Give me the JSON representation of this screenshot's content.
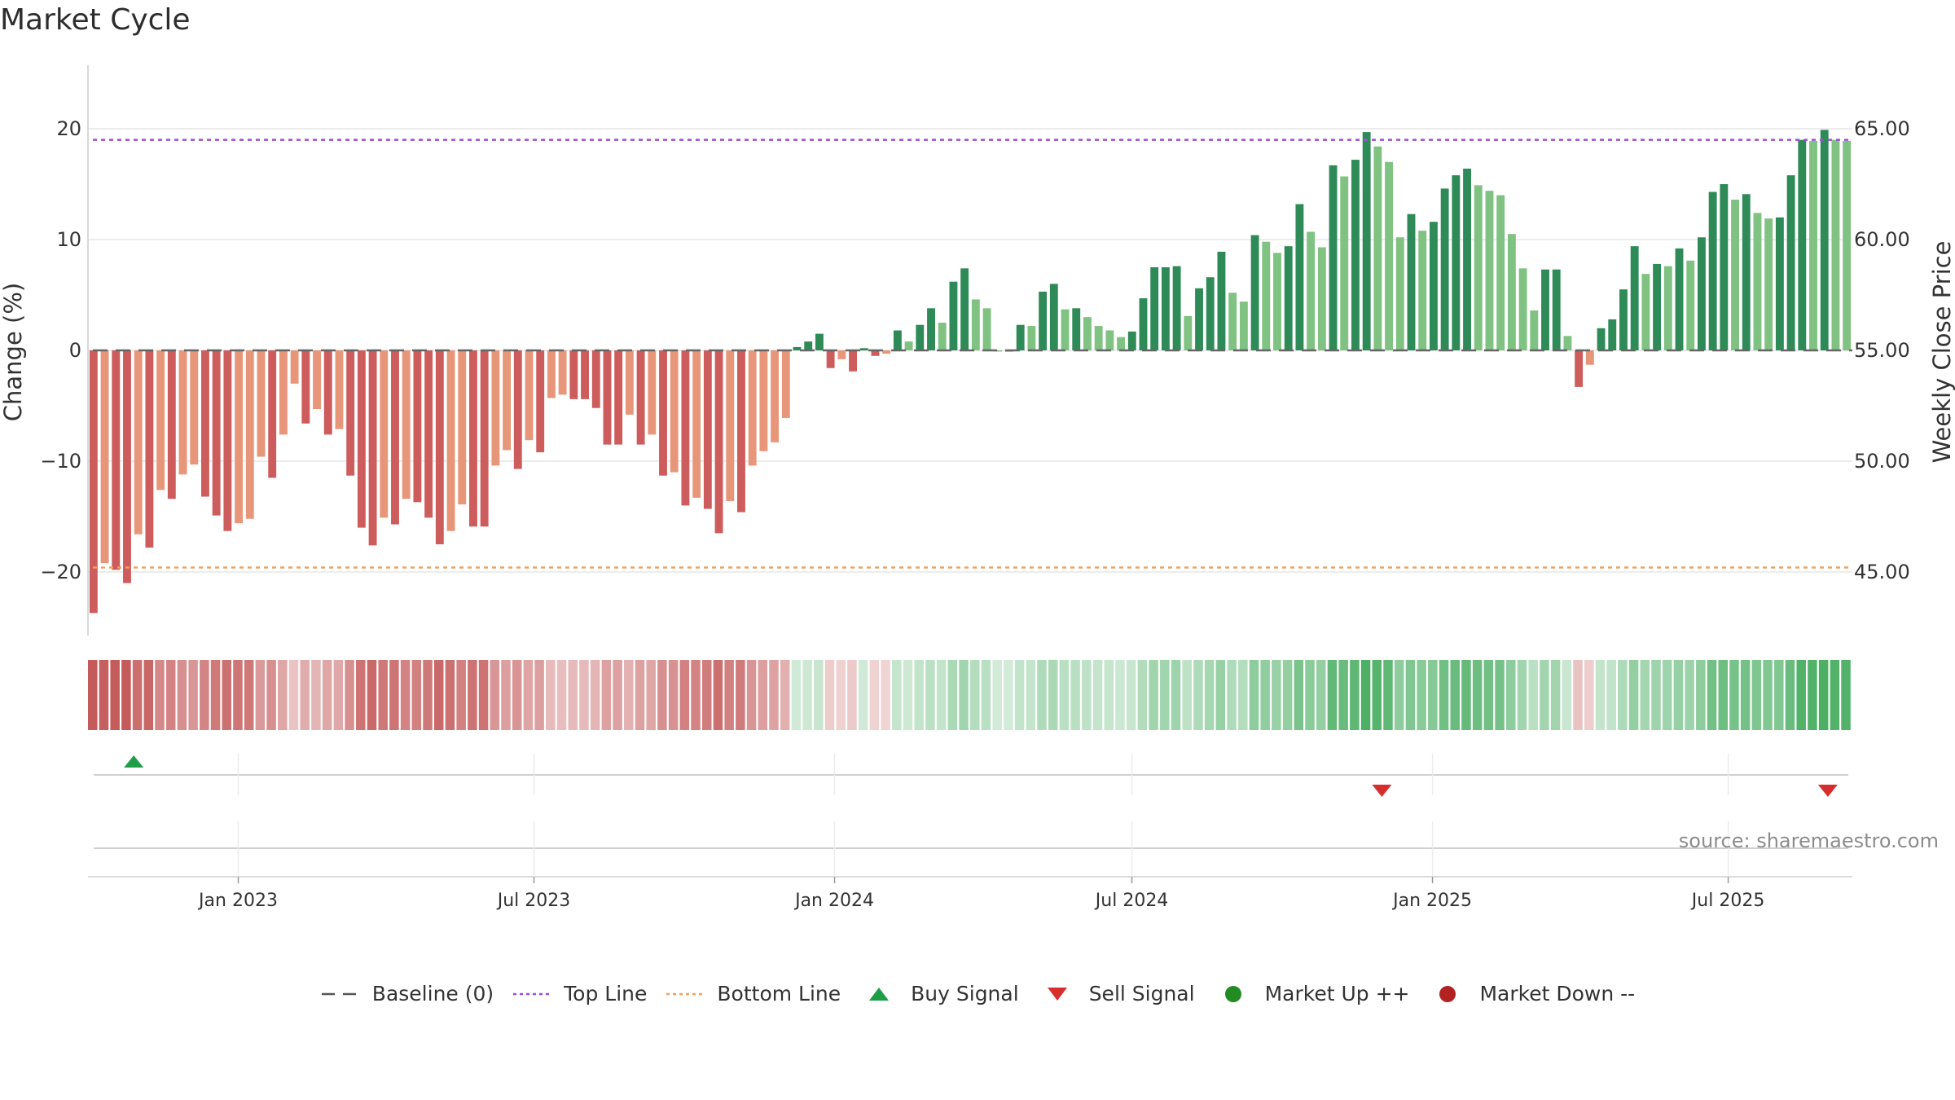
{
  "chart_data": {
    "type": "bar",
    "title": "Market Cycle",
    "ylabel_left": "Change (%)",
    "ylabel_right": "Weekly Close Price",
    "ylim_left": [
      -26,
      26
    ],
    "yticks_left": [
      20,
      10,
      0,
      -10,
      -20
    ],
    "ytick_labels_left": [
      "20",
      "10",
      "0",
      "−10",
      "−20"
    ],
    "ytick_labels_right": [
      "65.00",
      "60.00",
      "55.00",
      "50.00",
      "45.00"
    ],
    "reference_lines": {
      "top": 19,
      "bottom": -19.6,
      "baseline": 0
    },
    "x_range": [
      "2022-10-01",
      "2025-09-15"
    ],
    "x_ticks": [
      "2023-01-01",
      "2023-07-01",
      "2024-01-01",
      "2024-07-01",
      "2025-01-01",
      "2025-07-01"
    ],
    "x_tick_labels": [
      "Jan 2023",
      "Jul 2023",
      "Jan 2024",
      "Jul 2024",
      "Jan 2025",
      "Jul 2025"
    ],
    "values": [
      -23.7,
      -19.2,
      -19.8,
      -21,
      -16.6,
      -17.8,
      -12.6,
      -13.4,
      -11.2,
      -10.3,
      -13.2,
      -14.9,
      -16.3,
      -15.6,
      -15.2,
      -9.6,
      -11.5,
      -7.6,
      -3,
      -6.6,
      -5.3,
      -7.6,
      -7.1,
      -11.3,
      -16,
      -17.6,
      -15.1,
      -15.7,
      -13.4,
      -13.7,
      -15.1,
      -17.5,
      -16.3,
      -13.9,
      -15.9,
      -15.9,
      -10.4,
      -9,
      -10.7,
      -8.1,
      -9.2,
      -4.3,
      -4,
      -4.4,
      -4.4,
      -5.2,
      -8.5,
      -8.5,
      -5.8,
      -8.5,
      -7.6,
      -11.3,
      -11,
      -14,
      -13.3,
      -14.3,
      -16.5,
      -13.6,
      -14.6,
      -10.4,
      -9.1,
      -8.3,
      -6.1,
      0.3,
      0.8,
      1.5,
      -1.6,
      -0.8,
      -1.9,
      0.2,
      -0.5,
      -0.3,
      1.8,
      0.8,
      2.3,
      3.8,
      2.5,
      6.2,
      7.4,
      4.6,
      3.8,
      0,
      0,
      2.3,
      2.2,
      5.3,
      6,
      3.7,
      3.8,
      3,
      2.2,
      1.8,
      1.2,
      1.7,
      4.7,
      7.5,
      7.5,
      7.6,
      3.1,
      5.6,
      6.6,
      8.9,
      5.2,
      4.4,
      10.4,
      9.8,
      8.8,
      9.4,
      13.2,
      10.7,
      9.3,
      16.7,
      15.7,
      17.2,
      19.7,
      18.4,
      17,
      10.2,
      12.3,
      10.8,
      11.6,
      14.6,
      15.8,
      16.4,
      14.9,
      14.4,
      14,
      10.5,
      7.4,
      3.6,
      7.3,
      7.3,
      1.3,
      -3.3,
      -1.3,
      2,
      2.8,
      5.5,
      9.4,
      6.9,
      7.8,
      7.6,
      9.2,
      8.1,
      10.2,
      14.3,
      15,
      13.6,
      14.1,
      12.4,
      11.9,
      12,
      15.8,
      19,
      18.9,
      19.9,
      19,
      18.9
    ],
    "colors": {
      "bar_red_dark": "#cd5c5c",
      "bar_red_light": "#e8967a",
      "bar_green_dark": "#2e8b57",
      "bar_green_light": "#7fc281",
      "top_line": "#9b4fd6",
      "bottom_line": "#f2a060",
      "buy_signal": "#1e9e49",
      "sell_signal": "#d62d2d",
      "market_up": "#228b22",
      "market_down": "#b22222"
    },
    "signals": {
      "buy": [
        "2022-10-29"
      ],
      "sell": [
        "2024-12-01",
        "2025-08-31"
      ]
    }
  },
  "source_note": "source: sharemaestro.com",
  "legend": {
    "items": [
      {
        "label": "Baseline (0)",
        "icon": "dash-line"
      },
      {
        "label": "Top Line",
        "icon": "dotted-line-purple"
      },
      {
        "label": "Bottom Line",
        "icon": "dotted-line-orange"
      },
      {
        "label": "Buy Signal",
        "icon": "triangle-up-green"
      },
      {
        "label": "Sell Signal",
        "icon": "triangle-down-red"
      },
      {
        "label": "Market Up ++",
        "icon": "circle-green"
      },
      {
        "label": "Market Down --",
        "icon": "circle-red"
      }
    ]
  }
}
